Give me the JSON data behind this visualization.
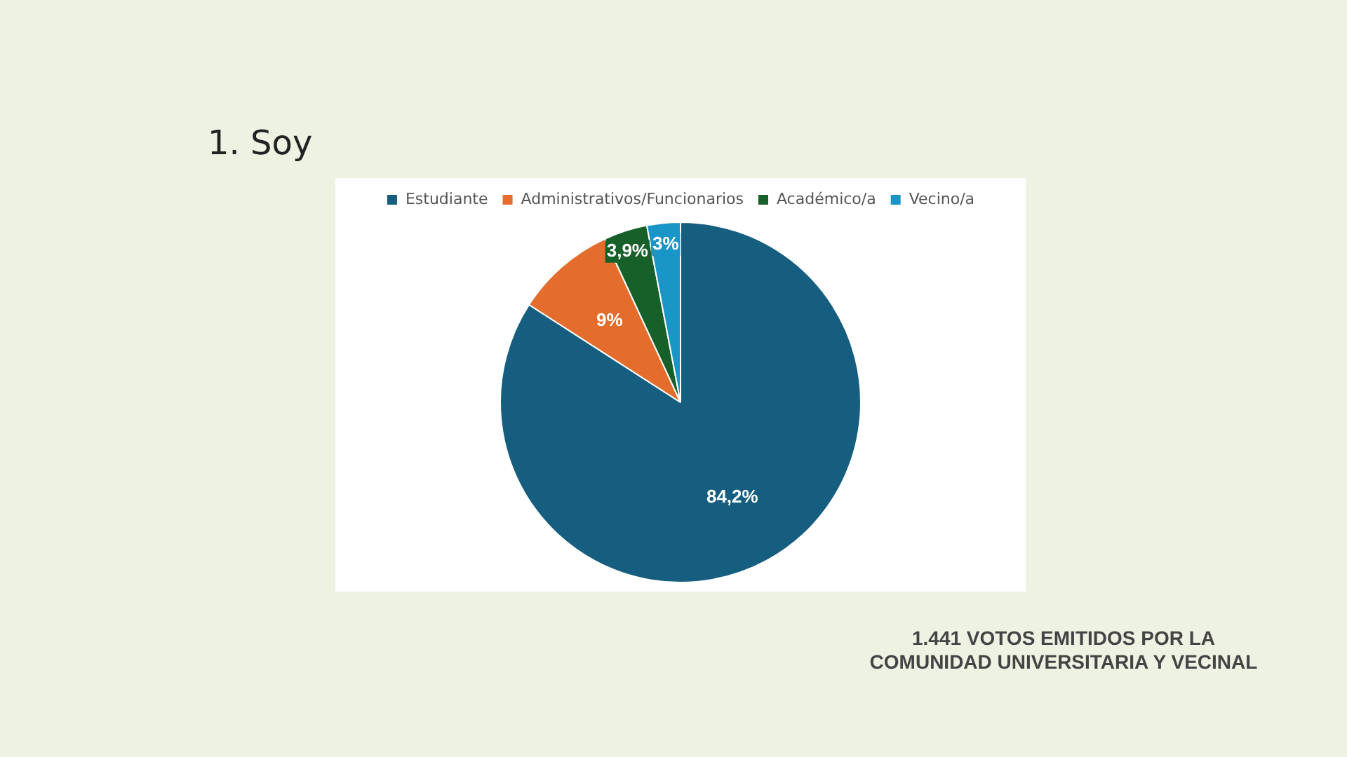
{
  "chart_data": {
    "type": "pie",
    "title": "1. Soy",
    "categories": [
      "Estudiante",
      "Administrativos/Funcionarios",
      "Académico/a",
      "Vecino/a"
    ],
    "values": [
      84.2,
      9,
      3.9,
      3
    ],
    "value_labels": [
      "84,2%",
      "9%",
      "3,9%",
      "3%"
    ],
    "colors": [
      "#165e80",
      "#e46c2c",
      "#17602a",
      "#1a95c8"
    ],
    "legend": "top",
    "annotations": [
      "1.441 VOTOS EMITIDOS POR LA\nCOMUNIDAD UNIVERSITARIA Y VECINAL"
    ]
  }
}
